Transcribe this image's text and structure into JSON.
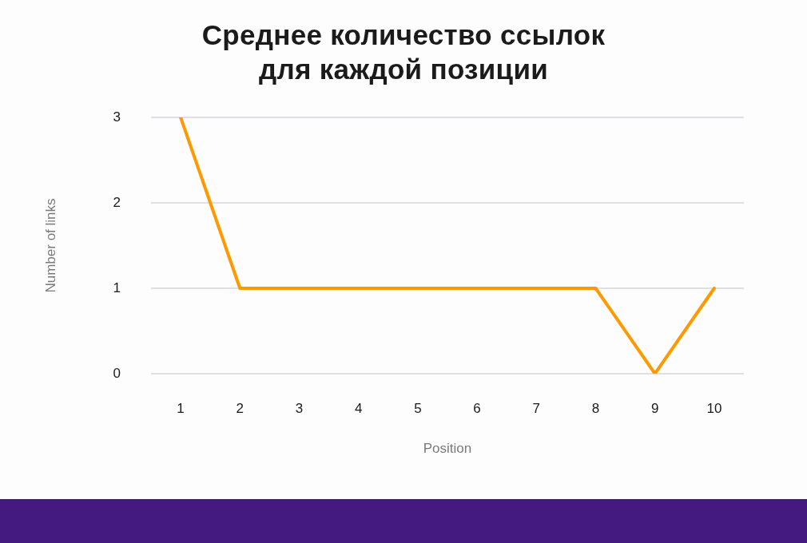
{
  "chart_data": {
    "type": "line",
    "title": "Среднее количество ссылок для каждой позиции",
    "xlabel": "Position",
    "ylabel": "Number of links",
    "categories": [
      "1",
      "2",
      "3",
      "4",
      "5",
      "6",
      "7",
      "8",
      "9",
      "10"
    ],
    "values": [
      3,
      1,
      1,
      1,
      1,
      1,
      1,
      1,
      0,
      1
    ],
    "color": "#ff9900",
    "ylim": [
      0,
      3
    ],
    "yticks": [
      0,
      1,
      2,
      3
    ],
    "grid": "y"
  }
}
